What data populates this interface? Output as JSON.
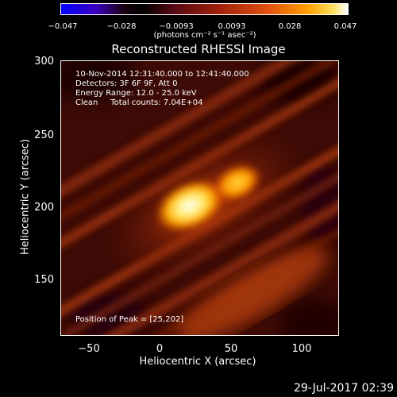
{
  "colorbar": {
    "tick_labels": [
      "−0.047",
      "−0.028",
      "−0.0093",
      "0.0093",
      "0.028",
      "0.047"
    ],
    "units": "(photons cm⁻² s⁻¹ asec⁻²)"
  },
  "plot": {
    "title": "Reconstructed RHESSI Image",
    "info_lines": [
      "10-Nov-2014 12:31:40.000 to 12:41:40.000",
      "Detectors: 3F 6F 9F, Att 0",
      "Energy Range: 12.0 - 25.0 keV",
      "Clean     Total counts: 7.04E+04"
    ],
    "peak_label": "Position of Peak = [25,202]",
    "xlabel": "Heliocentric X (arcsec)",
    "ylabel": "Heliocentric Y (arcsec)",
    "x_ticks": [
      "−50",
      "0",
      "50",
      "100"
    ],
    "y_ticks": [
      "300",
      "250",
      "200",
      "150"
    ]
  },
  "footer": {
    "timestamp": "29-Jul-2017 02:39"
  }
}
